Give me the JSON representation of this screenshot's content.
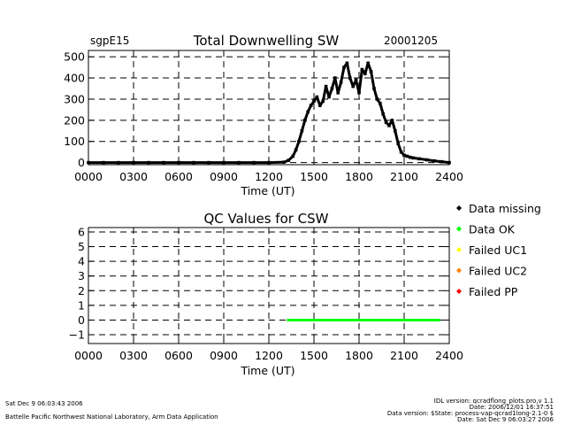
{
  "header": {
    "site": "sgpE15",
    "date": "20001205"
  },
  "colors": {
    "missing": "#000000",
    "ok": "#00ff00",
    "uc1": "#ffff00",
    "uc2": "#ff8000",
    "pp": "#ff0000",
    "grid": "#000000"
  },
  "chart_data": [
    {
      "type": "scatter",
      "title": "Total Downwelling SW",
      "xlabel": "Time (UT)",
      "ylabel": "",
      "xlim": [
        0,
        2400
      ],
      "ylim": [
        -10,
        530
      ],
      "x_ticks": [
        0,
        300,
        600,
        900,
        1200,
        1500,
        1800,
        2100,
        2400
      ],
      "x_tick_labels": [
        "0000",
        "0300",
        "0600",
        "0900",
        "1200",
        "1500",
        "1800",
        "2100",
        "2400"
      ],
      "y_ticks": [
        0,
        100,
        200,
        300,
        400,
        500
      ],
      "y_tick_labels": [
        "0",
        "100",
        "200",
        "300",
        "400",
        "500"
      ],
      "grid": true,
      "series": [
        {
          "name": "Data missing",
          "color": "#000000",
          "x": [
            0,
            100,
            200,
            300,
            400,
            500,
            600,
            700,
            800,
            900,
            1000,
            1100,
            1200,
            1300,
            1330,
            1360,
            1380,
            1400,
            1420,
            1440,
            1460,
            1480,
            1500,
            1520,
            1540,
            1560,
            1580,
            1600,
            1620,
            1640,
            1660,
            1680,
            1700,
            1720,
            1740,
            1760,
            1780,
            1800,
            1820,
            1840,
            1860,
            1880,
            1900,
            1920,
            1940,
            1960,
            1980,
            2000,
            2020,
            2040,
            2060,
            2080,
            2100,
            2120,
            2140,
            2160,
            2200,
            2250,
            2300,
            2350,
            2400
          ],
          "y": [
            0,
            0,
            0,
            0,
            0,
            0,
            0,
            0,
            0,
            0,
            0,
            0,
            0,
            2,
            10,
            30,
            60,
            100,
            150,
            200,
            240,
            270,
            290,
            310,
            270,
            290,
            360,
            310,
            350,
            400,
            330,
            380,
            450,
            470,
            400,
            360,
            390,
            330,
            440,
            420,
            470,
            430,
            350,
            300,
            280,
            230,
            190,
            175,
            200,
            150,
            90,
            50,
            35,
            30,
            25,
            22,
            18,
            13,
            8,
            4,
            0
          ]
        }
      ]
    },
    {
      "type": "line",
      "title": "QC Values for CSW",
      "xlabel": "Time (UT)",
      "ylabel": "",
      "xlim": [
        0,
        2400
      ],
      "ylim": [
        -1.6,
        6.3
      ],
      "x_ticks": [
        0,
        300,
        600,
        900,
        1200,
        1500,
        1800,
        2100,
        2400
      ],
      "x_tick_labels": [
        "0000",
        "0300",
        "0600",
        "0900",
        "1200",
        "1500",
        "1800",
        "2100",
        "2400"
      ],
      "y_ticks": [
        -1,
        0,
        1,
        2,
        3,
        4,
        5,
        6
      ],
      "y_tick_labels": [
        "−1",
        "0",
        "1",
        "2",
        "3",
        "4",
        "5",
        "6"
      ],
      "grid": true,
      "series": [
        {
          "name": "Data OK",
          "color": "#00ff00",
          "x": [
            1320,
            2340
          ],
          "y": [
            0,
            0
          ]
        }
      ]
    }
  ],
  "legend": {
    "placement": "right",
    "items": [
      {
        "label": "Data missing",
        "color": "#000000",
        "marker": "diamond"
      },
      {
        "label": "Data OK",
        "color": "#00ff00",
        "marker": "diamond"
      },
      {
        "label": "Failed UC1",
        "color": "#ffff00",
        "marker": "diamond"
      },
      {
        "label": "Failed UC2",
        "color": "#ff8000",
        "marker": "diamond"
      },
      {
        "label": "Failed PP",
        "color": "#ff0000",
        "marker": "diamond"
      }
    ]
  },
  "footer": {
    "timestamp": "Sat Dec  9 06:03:43 2006",
    "lab": "Battelle Pacific Northwest National Laboratory, Arm Data Application",
    "idl_version": "IDL version: qcradflong_plots.pro,v 1.1",
    "idl_date": "Date: 2006/12/01 16:37:51",
    "data_version": "Data version: $State: process-vap-qcrad1long-2.1-0 $",
    "data_date": "Date: Sat Dec  9 06:03:27 2006"
  }
}
